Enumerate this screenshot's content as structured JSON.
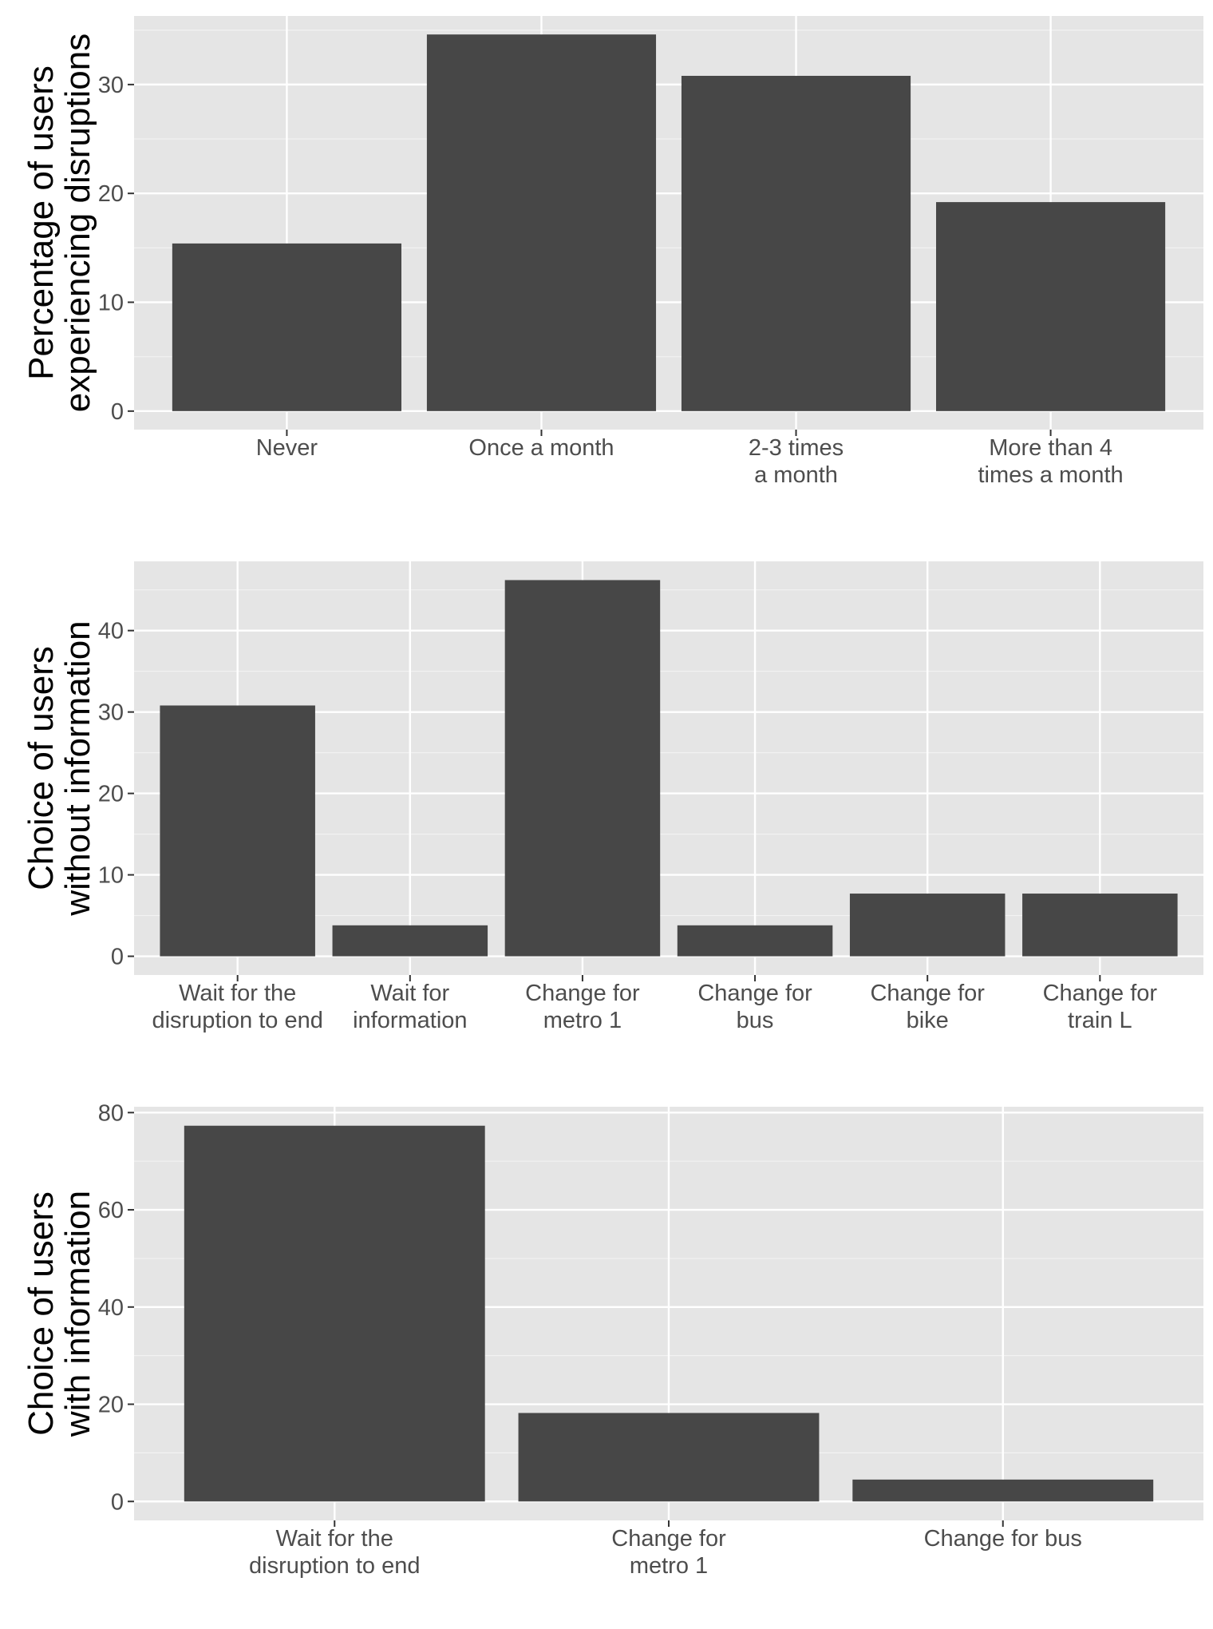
{
  "chart_data": [
    {
      "type": "bar",
      "categories": [
        "Never",
        "Once a month",
        "2-3 times\na month",
        "More than 4\ntimes a month"
      ],
      "values": [
        15.4,
        34.6,
        30.8,
        19.2
      ],
      "title": "",
      "xlabel": "",
      "ylabel": "Percentage of users\nexperiencing disruptions",
      "ylim": [
        -1.7,
        36.3
      ],
      "yticks": [
        0,
        10,
        20,
        30
      ],
      "grid": true
    },
    {
      "type": "bar",
      "categories": [
        "Wait for the\ndisruption to end",
        "Wait for\ninformation",
        "Change for\nmetro 1",
        "Change for\nbus",
        "Change for\nbike",
        "Change for\ntrain L"
      ],
      "values": [
        30.8,
        3.8,
        46.2,
        3.8,
        7.7,
        7.7
      ],
      "title": "",
      "xlabel": "",
      "ylabel": "Choice of users\nwithout information",
      "ylim": [
        -2.3,
        48.5
      ],
      "yticks": [
        0,
        10,
        20,
        30,
        40
      ],
      "grid": true
    },
    {
      "type": "bar",
      "categories": [
        "Wait for the\ndisruption to end",
        "Change for\nmetro 1",
        "Change for bus"
      ],
      "values": [
        77.3,
        18.2,
        4.5
      ],
      "title": "",
      "xlabel": "",
      "ylabel": "Choice of users\nwith information",
      "ylim": [
        -3.9,
        81.2
      ],
      "yticks": [
        0,
        20,
        40,
        60,
        80
      ],
      "grid": true
    }
  ]
}
